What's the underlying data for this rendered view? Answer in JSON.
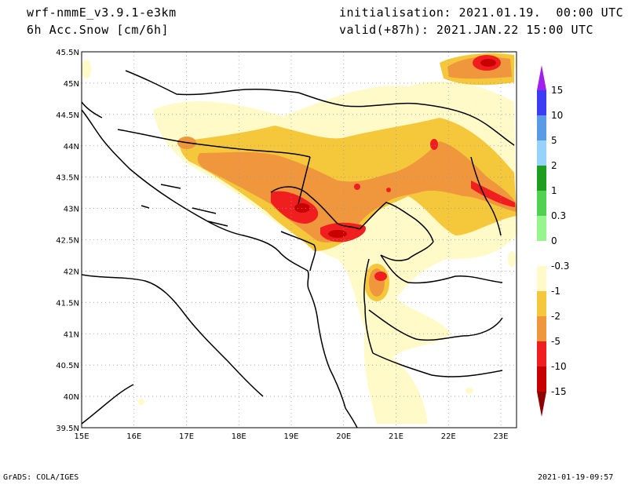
{
  "header": {
    "model": "wrf-nmmE_v3.9.1-e3km",
    "variable": "6h Acc.Snow [cm/6h]",
    "init": "initialisation: 2021.01.19.  00:00 UTC",
    "valid": "valid(+87h): 2021.JAN.22 15:00 UTC"
  },
  "footer": {
    "left": "GrADS: COLA/IGES",
    "right": "2021-01-19-09:57"
  },
  "map": {
    "lon_labels": [
      "15E",
      "16E",
      "17E",
      "18E",
      "19E",
      "20E",
      "21E",
      "22E",
      "23E"
    ],
    "lat_labels": [
      "45.5N",
      "45N",
      "44.5N",
      "44N",
      "43.5N",
      "43N",
      "42.5N",
      "42N",
      "41.5N",
      "41N",
      "40.5N",
      "40N",
      "39.5N"
    ],
    "lon_range": [
      15,
      23.3
    ],
    "lat_range": [
      39.5,
      45.5
    ],
    "grid": true
  },
  "colorbar": {
    "labels": [
      "15",
      "10",
      "5",
      "2",
      "1",
      "0.3",
      "0",
      "-0.3",
      "-1",
      "-2",
      "-5",
      "-10",
      "-15"
    ],
    "colors": [
      "#a020f0",
      "#3c3cf5",
      "#5a9be8",
      "#96d2fa",
      "#1e9e1e",
      "#50d250",
      "#96f58c",
      "#ffffff",
      "#fffac8",
      "#f5c83c",
      "#f0963c",
      "#f01e1e",
      "#c80000",
      "#8c0000"
    ]
  },
  "chart_data": {
    "type": "heatmap",
    "title": "6h Acc.Snow [cm/6h]",
    "xlabel": "",
    "ylabel": "",
    "x_range_deg_E": [
      15,
      23.3
    ],
    "y_range_deg_N": [
      39.5,
      45.5
    ],
    "levels": [
      -15,
      -10,
      -5,
      -2,
      -1,
      -0.3,
      0.3,
      1,
      2,
      5,
      10,
      15
    ],
    "max_zones": [
      {
        "lon": 19.3,
        "lat": 42.9,
        "class": "-10"
      },
      {
        "lon": 20.0,
        "lat": 42.6,
        "class": "-10"
      },
      {
        "lon": 22.8,
        "lat": 45.3,
        "class": "-10"
      },
      {
        "lon": 20.7,
        "lat": 42.0,
        "class": "-10"
      }
    ]
  }
}
